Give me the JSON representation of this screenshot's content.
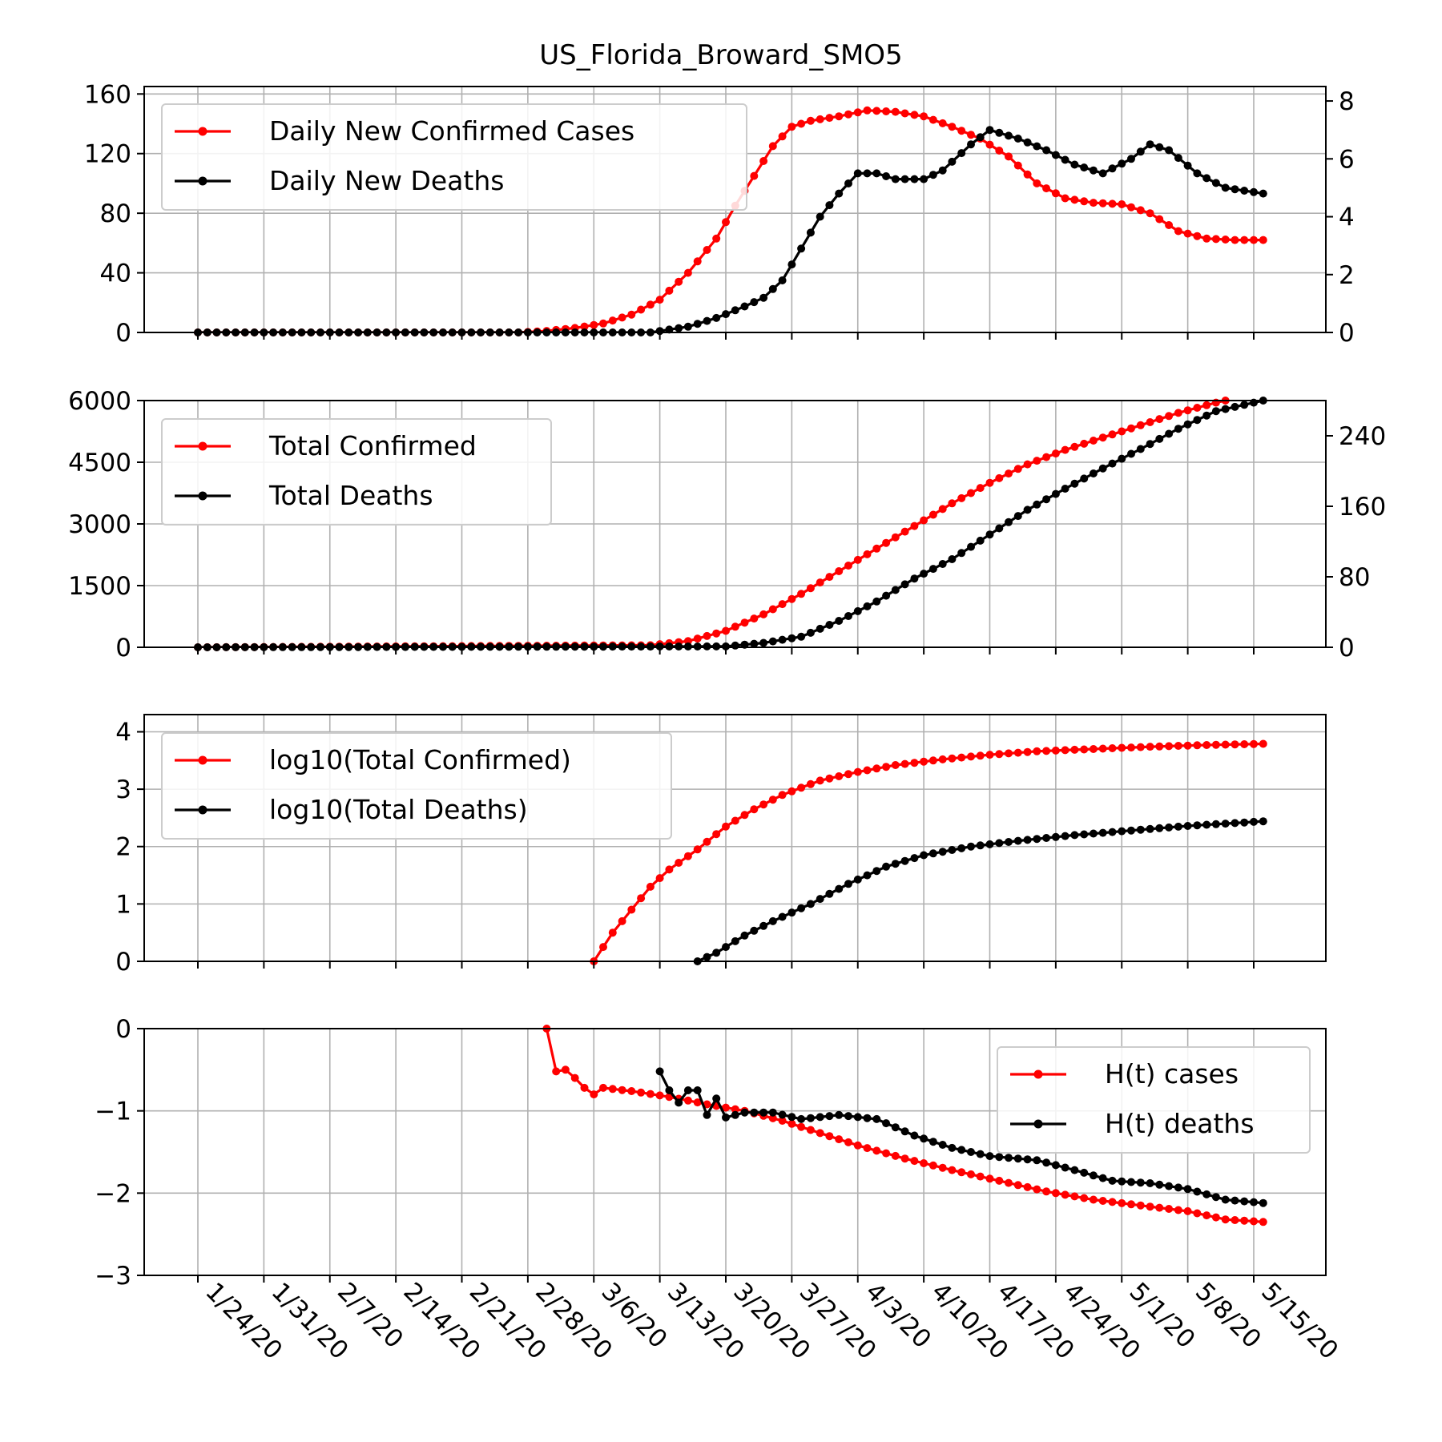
{
  "figure": {
    "title": "US_Florida_Broward_SMO5"
  },
  "colors": {
    "cases": "#ff0000",
    "deaths": "#000000",
    "grid": "#b0b0b0",
    "axis": "#000000"
  },
  "x_dates": [
    "1/24/20",
    "1/31/20",
    "2/7/20",
    "2/14/20",
    "2/21/20",
    "2/28/20",
    "3/6/20",
    "3/13/20",
    "3/20/20",
    "3/27/20",
    "4/3/20",
    "4/10/20",
    "4/17/20",
    "4/24/20",
    "5/1/20",
    "5/8/20",
    "5/15/20"
  ],
  "chart_data": [
    {
      "type": "line",
      "title": "US_Florida_Broward_SMO5",
      "x_start": "1/24/20",
      "x_end": "5/15/20",
      "grid": true,
      "legend_position": "top-left",
      "left_axis": {
        "ylim": [
          0,
          165
        ],
        "ticks": [
          0,
          40,
          80,
          120,
          160
        ],
        "tick_labels": [
          "0",
          "40",
          "80",
          "120",
          "160"
        ]
      },
      "right_axis": {
        "ylim": [
          0,
          8.5
        ],
        "ticks": [
          0,
          2,
          4,
          6,
          8
        ],
        "tick_labels": [
          "0",
          "2",
          "4",
          "6",
          "8"
        ]
      },
      "series": [
        {
          "name": "Daily New Confirmed Cases",
          "axis": "left",
          "color": "#ff0000",
          "points": [
            [
              "1/24/20",
              0
            ],
            [
              "2/27/20",
              0
            ],
            [
              "3/1/20",
              1
            ],
            [
              "3/4/20",
              3
            ],
            [
              "3/7/20",
              6
            ],
            [
              "3/10/20",
              12
            ],
            [
              "3/13/20",
              22
            ],
            [
              "3/16/20",
              40
            ],
            [
              "3/19/20",
              63
            ],
            [
              "3/21/20",
              85
            ],
            [
              "3/23/20",
              105
            ],
            [
              "3/25/20",
              125
            ],
            [
              "3/27/20",
              138
            ],
            [
              "3/29/20",
              142
            ],
            [
              "4/1/20",
              145
            ],
            [
              "4/4/20",
              149
            ],
            [
              "4/7/20",
              148
            ],
            [
              "4/10/20",
              145
            ],
            [
              "4/13/20",
              138
            ],
            [
              "4/16/20",
              130
            ],
            [
              "4/19/20",
              118
            ],
            [
              "4/22/20",
              100
            ],
            [
              "4/25/20",
              90
            ],
            [
              "4/28/20",
              87
            ],
            [
              "5/1/20",
              86
            ],
            [
              "5/4/20",
              80
            ],
            [
              "5/7/20",
              68
            ],
            [
              "5/10/20",
              63
            ],
            [
              "5/13/20",
              62
            ],
            [
              "5/16/20",
              62
            ]
          ]
        },
        {
          "name": "Daily New Deaths",
          "axis": "right",
          "color": "#000000",
          "points": [
            [
              "1/24/20",
              0
            ],
            [
              "3/12/20",
              0
            ],
            [
              "3/16/20",
              0.2
            ],
            [
              "3/19/20",
              0.5
            ],
            [
              "3/22/20",
              0.9
            ],
            [
              "3/24/20",
              1.2
            ],
            [
              "3/26/20",
              1.8
            ],
            [
              "3/28/20",
              2.9
            ],
            [
              "3/30/20",
              4.0
            ],
            [
              "4/1/20",
              4.8
            ],
            [
              "4/3/20",
              5.5
            ],
            [
              "4/5/20",
              5.5
            ],
            [
              "4/7/20",
              5.3
            ],
            [
              "4/10/20",
              5.3
            ],
            [
              "4/12/20",
              5.6
            ],
            [
              "4/15/20",
              6.5
            ],
            [
              "4/17/20",
              7.0
            ],
            [
              "4/20/20",
              6.7
            ],
            [
              "4/23/20",
              6.3
            ],
            [
              "4/26/20",
              5.8
            ],
            [
              "4/29/20",
              5.5
            ],
            [
              "5/2/20",
              6.0
            ],
            [
              "5/4/20",
              6.5
            ],
            [
              "5/6/20",
              6.3
            ],
            [
              "5/9/20",
              5.5
            ],
            [
              "5/12/20",
              5.0
            ],
            [
              "5/14/20",
              4.9
            ],
            [
              "5/16/20",
              4.8
            ]
          ]
        }
      ]
    },
    {
      "type": "line",
      "x_start": "1/24/20",
      "x_end": "5/15/20",
      "grid": true,
      "legend_position": "top-left",
      "left_axis": {
        "ylim": [
          0,
          6000
        ],
        "ticks": [
          0,
          1500,
          3000,
          4500,
          6000
        ],
        "tick_labels": [
          "0",
          "1500",
          "3000",
          "4500",
          "6000"
        ]
      },
      "right_axis": {
        "ylim": [
          0,
          280
        ],
        "ticks": [
          0,
          80,
          160,
          240
        ],
        "tick_labels": [
          "0",
          "80",
          "160",
          "240"
        ]
      },
      "series": [
        {
          "name": "Total Confirmed",
          "axis": "left",
          "color": "#ff0000",
          "points": [
            [
              "1/24/20",
              0
            ],
            [
              "3/12/20",
              50
            ],
            [
              "3/16/20",
              150
            ],
            [
              "3/20/20",
              400
            ],
            [
              "3/24/20",
              800
            ],
            [
              "3/28/20",
              1300
            ],
            [
              "4/1/20",
              1850
            ],
            [
              "4/5/20",
              2400
            ],
            [
              "4/9/20",
              2950
            ],
            [
              "4/13/20",
              3500
            ],
            [
              "4/17/20",
              4000
            ],
            [
              "4/21/20",
              4450
            ],
            [
              "4/25/20",
              4800
            ],
            [
              "4/29/20",
              5100
            ],
            [
              "5/3/20",
              5400
            ],
            [
              "5/7/20",
              5700
            ],
            [
              "5/11/20",
              5950
            ],
            [
              "5/16/20",
              6200
            ]
          ]
        },
        {
          "name": "Total Deaths",
          "axis": "right",
          "color": "#000000",
          "points": [
            [
              "1/24/20",
              0
            ],
            [
              "3/20/20",
              1
            ],
            [
              "3/24/20",
              5
            ],
            [
              "3/28/20",
              12
            ],
            [
              "4/1/20",
              30
            ],
            [
              "4/5/20",
              52
            ],
            [
              "4/9/20",
              78
            ],
            [
              "4/13/20",
              100
            ],
            [
              "4/17/20",
              128
            ],
            [
              "4/21/20",
              156
            ],
            [
              "4/25/20",
              180
            ],
            [
              "4/29/20",
              203
            ],
            [
              "5/3/20",
              225
            ],
            [
              "5/7/20",
              248
            ],
            [
              "5/11/20",
              268
            ],
            [
              "5/16/20",
              280
            ]
          ]
        }
      ]
    },
    {
      "type": "line",
      "x_start": "1/24/20",
      "x_end": "5/15/20",
      "grid": true,
      "legend_position": "top-left",
      "left_axis": {
        "ylim": [
          0,
          4.3
        ],
        "ticks": [
          0,
          1,
          2,
          3,
          4
        ],
        "tick_labels": [
          "0",
          "1",
          "2",
          "3",
          "4"
        ]
      },
      "series": [
        {
          "name": "log10(Total Confirmed)",
          "axis": "left",
          "color": "#ff0000",
          "points": [
            [
              "3/6/20",
              0
            ],
            [
              "3/8/20",
              0.5
            ],
            [
              "3/10/20",
              0.9
            ],
            [
              "3/12/20",
              1.3
            ],
            [
              "3/14/20",
              1.6
            ],
            [
              "3/17/20",
              1.95
            ],
            [
              "3/20/20",
              2.35
            ],
            [
              "3/23/20",
              2.65
            ],
            [
              "3/26/20",
              2.9
            ],
            [
              "3/30/20",
              3.15
            ],
            [
              "4/3/20",
              3.3
            ],
            [
              "4/7/20",
              3.42
            ],
            [
              "4/12/20",
              3.52
            ],
            [
              "4/17/20",
              3.6
            ],
            [
              "4/22/20",
              3.66
            ],
            [
              "4/28/20",
              3.7
            ],
            [
              "5/4/20",
              3.74
            ],
            [
              "5/10/20",
              3.77
            ],
            [
              "5/16/20",
              3.79
            ]
          ]
        },
        {
          "name": "log10(Total Deaths)",
          "axis": "left",
          "color": "#000000",
          "points": [
            [
              "3/17/20",
              0
            ],
            [
              "3/19/20",
              0.15
            ],
            [
              "3/22/20",
              0.45
            ],
            [
              "3/25/20",
              0.7
            ],
            [
              "3/29/20",
              1.0
            ],
            [
              "4/2/20",
              1.35
            ],
            [
              "4/6/20",
              1.65
            ],
            [
              "4/10/20",
              1.85
            ],
            [
              "4/15/20",
              2.0
            ],
            [
              "4/20/20",
              2.1
            ],
            [
              "4/26/20",
              2.2
            ],
            [
              "5/2/20",
              2.28
            ],
            [
              "5/8/20",
              2.36
            ],
            [
              "5/16/20",
              2.44
            ]
          ]
        }
      ]
    },
    {
      "type": "line",
      "x_start": "1/24/20",
      "x_end": "5/15/20",
      "grid": true,
      "legend_position": "top-right",
      "left_axis": {
        "ylim": [
          -3,
          0
        ],
        "ticks": [
          -3,
          -2,
          -1,
          0
        ],
        "tick_labels": [
          "−3",
          "−2",
          "−1",
          "0"
        ]
      },
      "series": [
        {
          "name": "H(t) cases",
          "axis": "left",
          "color": "#ff0000",
          "points": [
            [
              "3/1/20",
              0
            ],
            [
              "3/2/20",
              -0.52
            ],
            [
              "3/3/20",
              -0.5
            ],
            [
              "3/4/20",
              -0.6
            ],
            [
              "3/5/20",
              -0.72
            ],
            [
              "3/6/20",
              -0.8
            ],
            [
              "3/7/20",
              -0.72
            ],
            [
              "3/10/20",
              -0.76
            ],
            [
              "3/14/20",
              -0.83
            ],
            [
              "3/18/20",
              -0.92
            ],
            [
              "3/22/20",
              -1.0
            ],
            [
              "3/26/20",
              -1.12
            ],
            [
              "3/30/20",
              -1.27
            ],
            [
              "4/3/20",
              -1.42
            ],
            [
              "4/8/20",
              -1.58
            ],
            [
              "4/13/20",
              -1.72
            ],
            [
              "4/18/20",
              -1.85
            ],
            [
              "4/23/20",
              -1.98
            ],
            [
              "4/28/20",
              -2.08
            ],
            [
              "5/3/20",
              -2.15
            ],
            [
              "5/8/20",
              -2.22
            ],
            [
              "5/12/20",
              -2.32
            ],
            [
              "5/16/20",
              -2.35
            ]
          ]
        },
        {
          "name": "H(t) deaths",
          "axis": "left",
          "color": "#000000",
          "points": [
            [
              "3/13/20",
              -0.52
            ],
            [
              "3/14/20",
              -0.75
            ],
            [
              "3/15/20",
              -0.9
            ],
            [
              "3/16/20",
              -0.75
            ],
            [
              "3/17/20",
              -0.75
            ],
            [
              "3/18/20",
              -1.05
            ],
            [
              "3/19/20",
              -0.85
            ],
            [
              "3/20/20",
              -1.08
            ],
            [
              "3/22/20",
              -1.02
            ],
            [
              "3/25/20",
              -1.02
            ],
            [
              "3/28/20",
              -1.1
            ],
            [
              "4/1/20",
              -1.05
            ],
            [
              "4/5/20",
              -1.1
            ],
            [
              "4/9/20",
              -1.3
            ],
            [
              "4/13/20",
              -1.45
            ],
            [
              "4/17/20",
              -1.55
            ],
            [
              "4/22/20",
              -1.6
            ],
            [
              "4/26/20",
              -1.72
            ],
            [
              "4/30/20",
              -1.85
            ],
            [
              "5/4/20",
              -1.88
            ],
            [
              "5/8/20",
              -1.95
            ],
            [
              "5/12/20",
              -2.08
            ],
            [
              "5/16/20",
              -2.12
            ]
          ]
        }
      ]
    }
  ]
}
